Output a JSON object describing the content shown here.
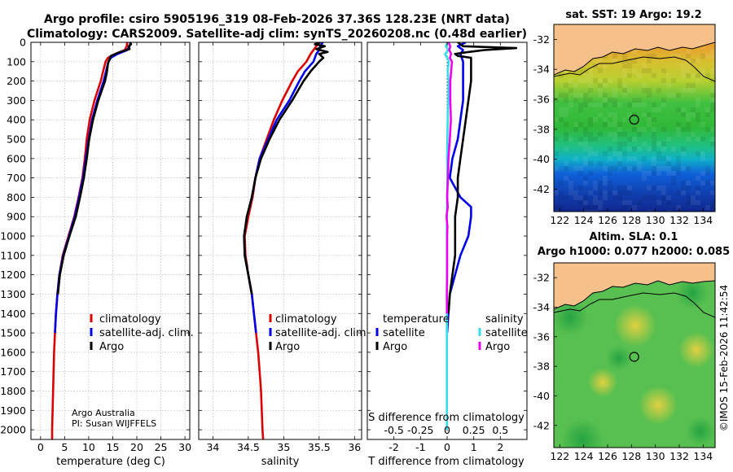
{
  "header": {
    "title_line1": "Argo profile: csiro 5905196_319 08-Feb-2026 37.36S 128.23E (NRT data)",
    "title_line2": "Climatology: CARS2009. Satellite-adj clim: synTS_20260208.nc (0.48d earlier)"
  },
  "colors": {
    "climatology": "#dd0000",
    "satellite_adj": "#0000ee",
    "argo": "#000000",
    "satellite": "#33ddee",
    "salinity_argo": "#ee00ee"
  },
  "credit": {
    "line1": "Argo Australia",
    "line2": "PI: Susan WIJFFELS"
  },
  "watermark": "©IMOS 15-Feb-2026 11:42:54",
  "chart_data": [
    {
      "type": "line",
      "id": "temperature",
      "xlabel": "temperature (deg C)",
      "ylabel": "",
      "xlim": [
        -2,
        31
      ],
      "ylim": [
        2050,
        0
      ],
      "xticks": [
        0,
        5,
        10,
        15,
        20,
        25,
        30
      ],
      "yticks": [
        0,
        100,
        200,
        300,
        400,
        500,
        600,
        700,
        800,
        900,
        1000,
        1100,
        1200,
        1300,
        1400,
        1500,
        1600,
        1700,
        1800,
        1900,
        2000
      ],
      "grid": true,
      "legend": [
        "climatology",
        "satellite-adj. clim.",
        "Argo"
      ],
      "series": [
        {
          "name": "climatology",
          "color": "#dd0000",
          "depth": [
            0,
            20,
            40,
            60,
            80,
            100,
            150,
            200,
            300,
            400,
            500,
            600,
            700,
            800,
            900,
            1000,
            1100,
            1200,
            1300,
            1400,
            1500,
            1600,
            1700,
            1800,
            1900,
            2000,
            2050
          ],
          "values": [
            18.0,
            17.9,
            17.5,
            15.5,
            14.0,
            13.5,
            13.0,
            12.5,
            11.2,
            10.2,
            9.6,
            9.2,
            8.7,
            7.9,
            7.0,
            5.8,
            4.6,
            3.9,
            3.5,
            3.2,
            3.0,
            2.8,
            2.7,
            2.6,
            2.5,
            2.4,
            2.4
          ]
        },
        {
          "name": "satellite-adj. clim.",
          "color": "#0000ee",
          "depth": [
            0,
            20,
            40,
            60,
            80,
            100,
            150,
            200,
            300,
            400,
            500,
            600,
            700,
            800,
            900,
            1000,
            1100,
            1200,
            1300,
            1400,
            1500
          ],
          "values": [
            18.7,
            18.5,
            18.0,
            16.0,
            14.6,
            14.1,
            13.6,
            13.1,
            11.8,
            10.7,
            10.0,
            9.4,
            8.8,
            8.0,
            7.1,
            5.9,
            4.7,
            3.9,
            3.5,
            3.2,
            3.0
          ]
        },
        {
          "name": "Argo",
          "color": "#000000",
          "depth": [
            0,
            10,
            20,
            35,
            50,
            70,
            90,
            110,
            150,
            200,
            300,
            400,
            500,
            600,
            700,
            800,
            900,
            1000,
            1100,
            1200,
            1300
          ],
          "values": [
            18.6,
            18.8,
            18.3,
            18.5,
            16.5,
            14.6,
            14.3,
            14.0,
            13.8,
            13.4,
            12.0,
            10.9,
            10.1,
            9.6,
            9.0,
            8.2,
            7.3,
            6.0,
            4.8,
            4.0,
            3.6
          ]
        }
      ]
    },
    {
      "type": "line",
      "id": "salinity",
      "xlabel": "salinity",
      "xlim": [
        33.8,
        36.1
      ],
      "ylim": [
        2050,
        0
      ],
      "xticks": [
        34,
        34.5,
        35,
        35.5,
        36
      ],
      "grid": true,
      "legend": [
        "climatology",
        "satellite-adj. clim.",
        "Argo"
      ],
      "series": [
        {
          "name": "climatology",
          "color": "#dd0000",
          "depth": [
            0,
            20,
            40,
            60,
            100,
            150,
            200,
            300,
            400,
            500,
            600,
            700,
            800,
            900,
            1000,
            1100,
            1200,
            1300,
            1400,
            1500,
            1600,
            1700,
            1800,
            1900,
            2000,
            2050
          ],
          "values": [
            35.48,
            35.46,
            35.42,
            35.38,
            35.32,
            35.2,
            35.12,
            34.98,
            34.86,
            34.76,
            34.66,
            34.6,
            34.56,
            34.5,
            34.45,
            34.46,
            34.5,
            34.55,
            34.58,
            34.61,
            34.64,
            34.66,
            34.68,
            34.69,
            34.7,
            34.71
          ]
        },
        {
          "name": "satellite-adj. clim.",
          "color": "#0000ee",
          "depth": [
            0,
            20,
            40,
            60,
            100,
            150,
            200,
            300,
            400,
            500,
            600,
            700,
            800,
            900,
            1000,
            1100,
            1200,
            1300,
            1400,
            1500
          ],
          "values": [
            35.55,
            35.52,
            35.5,
            35.46,
            35.42,
            35.3,
            35.22,
            35.08,
            34.9,
            34.78,
            34.66,
            34.6,
            34.55,
            34.48,
            34.44,
            34.45,
            34.5,
            34.55,
            34.58,
            34.61
          ]
        },
        {
          "name": "Argo",
          "color": "#000000",
          "depth": [
            0,
            10,
            20,
            35,
            50,
            60,
            80,
            100,
            150,
            200,
            300,
            400,
            500,
            600,
            700,
            800,
            900,
            1000,
            1100,
            1200,
            1300
          ],
          "values": [
            35.52,
            35.44,
            35.58,
            35.46,
            35.62,
            35.5,
            35.56,
            35.5,
            35.38,
            35.28,
            35.12,
            34.94,
            34.8,
            34.68,
            34.6,
            34.55,
            34.48,
            34.44,
            34.45,
            34.5,
            34.55
          ]
        }
      ]
    },
    {
      "type": "line",
      "id": "difference",
      "xlabel": "T difference from climatology",
      "top_label": "S difference from climatology",
      "xlim": [
        -3,
        3
      ],
      "ylim": [
        2050,
        0
      ],
      "xticks": [
        -2,
        -1,
        0,
        1,
        2
      ],
      "top_ticks": [
        -0.5,
        -0.25,
        0,
        0.25,
        0.5
      ],
      "top_tick_labels": [
        "-0.5",
        "-0.25",
        "0",
        "0.25",
        "0.5"
      ],
      "grid": false,
      "legend_temperature": {
        "title": "temperature",
        "entries": [
          "satellite",
          "Argo"
        ]
      },
      "legend_salinity": {
        "title": "salinity",
        "entries": [
          "satellite",
          "Argo"
        ]
      },
      "series": [
        {
          "name": "temperature satellite",
          "color": "#0000ee",
          "depth": [
            0,
            20,
            40,
            60,
            100,
            150,
            200,
            300,
            400,
            500,
            600,
            700,
            800,
            850,
            900,
            1000,
            1100,
            1200,
            1300,
            1400,
            1500
          ],
          "values": [
            0.7,
            0.4,
            0.6,
            0.5,
            0.6,
            0.6,
            0.6,
            0.6,
            0.5,
            0.4,
            0.2,
            0.1,
            0.5,
            0.9,
            0.9,
            0.8,
            0.5,
            0.3,
            0.1,
            0.05,
            0.0
          ]
        },
        {
          "name": "temperature Argo",
          "color": "#000000",
          "depth": [
            0,
            20,
            30,
            40,
            50,
            60,
            70,
            80,
            100,
            150,
            200,
            300,
            400,
            500,
            600,
            700,
            800,
            900,
            1000,
            1100,
            1200,
            1300,
            1400
          ],
          "values": [
            0.4,
            0.6,
            2.6,
            1.4,
            0.8,
            0.3,
            0.4,
            0.9,
            0.9,
            0.9,
            0.9,
            0.8,
            0.7,
            0.6,
            0.5,
            0.4,
            0.4,
            0.3,
            0.3,
            0.3,
            0.2,
            0.1,
            0.05
          ]
        },
        {
          "name": "salinity satellite",
          "color": "#33ddee",
          "depth": [
            0,
            20,
            40,
            60,
            80,
            100,
            150,
            200,
            300,
            400,
            500,
            600,
            700,
            800,
            900,
            1000,
            1200,
            1500,
            2000
          ],
          "values": [
            0.02,
            -0.05,
            0.05,
            -0.08,
            0.0,
            0.06,
            0.02,
            0.05,
            0.04,
            0.02,
            0.01,
            0.0,
            0.01,
            0.0,
            -0.01,
            -0.01,
            -0.01,
            -0.01,
            -0.01
          ]
        },
        {
          "name": "salinity Argo",
          "color": "#ee00ee",
          "depth": [
            0,
            20,
            40,
            60,
            80,
            100,
            150,
            200,
            300,
            400,
            500,
            600,
            700,
            800,
            850,
            900,
            950,
            1000,
            1100,
            1200,
            1300,
            1400
          ],
          "values": [
            0.05,
            0.12,
            0.08,
            0.15,
            0.1,
            0.18,
            0.15,
            0.12,
            0.12,
            0.14,
            0.1,
            0.05,
            0.03,
            0.0,
            0.02,
            -0.02,
            0.01,
            0.0,
            0.0,
            0.0,
            -0.01,
            -0.01
          ]
        }
      ]
    },
    {
      "type": "heatmap",
      "id": "sst_map",
      "title": "sat. SST: 19 Argo: 19.2",
      "xlim": [
        121.5,
        135
      ],
      "ylim": [
        -43.5,
        -31
      ],
      "xticks": [
        122,
        124,
        126,
        128,
        130,
        132,
        134
      ],
      "yticks": [
        -32,
        -34,
        -36,
        -38,
        -40,
        -42
      ],
      "marker": {
        "lon": 128.23,
        "lat": -37.36
      }
    },
    {
      "type": "heatmap",
      "id": "sla_map",
      "title_line1": "Altim. SLA: 0.1",
      "title_line2": "Argo h1000: 0.077 h2000: 0.085",
      "xlim": [
        121.5,
        135
      ],
      "ylim": [
        -43.5,
        -31
      ],
      "xticks": [
        122,
        124,
        126,
        128,
        130,
        132,
        134
      ],
      "yticks": [
        -32,
        -34,
        -36,
        -38,
        -40,
        -42
      ],
      "marker": {
        "lon": 128.23,
        "lat": -37.36
      }
    }
  ]
}
